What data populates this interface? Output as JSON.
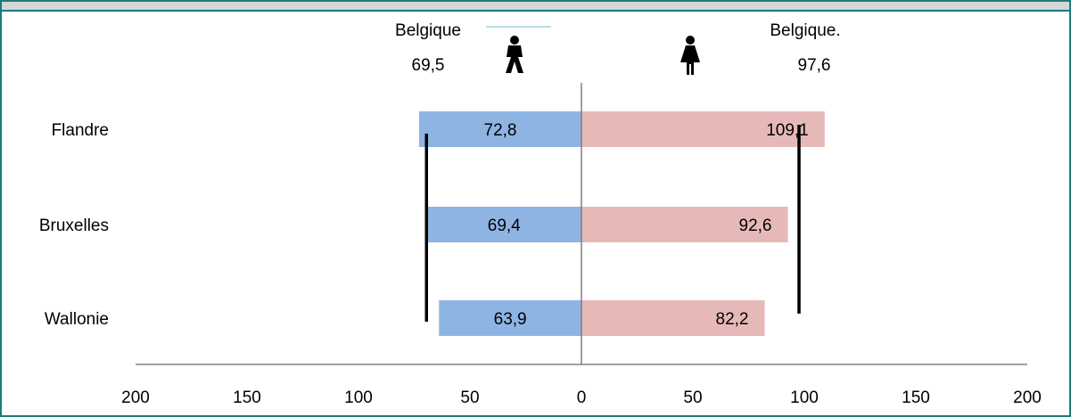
{
  "chart_data": {
    "type": "bar",
    "orientation": "horizontal",
    "layout": "diverging",
    "categories": [
      "Flandre",
      "Bruxelles",
      "Wallonie"
    ],
    "series": [
      {
        "values": [
          72.8,
          69.4,
          63.9
        ],
        "direction": "left"
      },
      {
        "values": [
          109.1,
          92.6,
          82.2
        ],
        "direction": "right"
      }
    ],
    "data_labels": {
      "left": [
        "72,8",
        "69,4",
        "63,9"
      ],
      "right": [
        "109,1",
        "92,6",
        "82,2"
      ]
    },
    "reference_lines": [
      {
        "label": "Belgique",
        "value_label": "69,5",
        "value": 69.5,
        "side": "left"
      },
      {
        "label": "Belgique.",
        "value_label": "97,6",
        "value": 97.6,
        "side": "right"
      }
    ],
    "x_ticks": [
      200,
      150,
      100,
      50,
      0,
      50,
      100,
      150,
      200
    ],
    "xlim": [
      -200,
      200
    ],
    "title": "",
    "xlabel": "",
    "ylabel": "",
    "legend": "none",
    "grid": false
  },
  "icons": {
    "left": "man-icon",
    "right": "woman-icon"
  },
  "colors": {
    "left_bar": "#8eb4e3",
    "right_bar": "#e6b9b8",
    "frame": "#1f7a7a",
    "header": "#d6d6d6",
    "axis": "#808080",
    "reference": "#000000"
  }
}
